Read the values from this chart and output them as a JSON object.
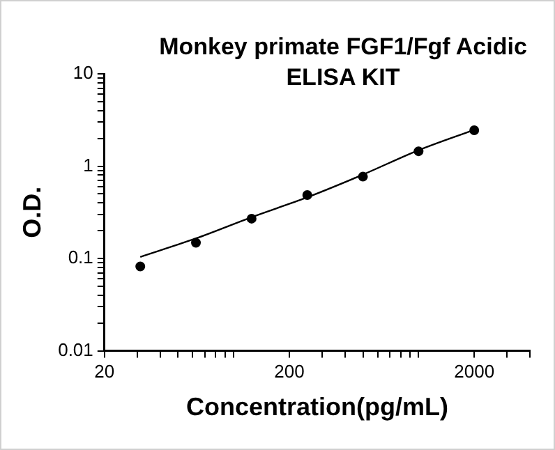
{
  "chart_data": {
    "type": "scatter",
    "title": "Monkey primate FGF1/Fgf Acidic ELISA KIT",
    "xlabel": "Concentration(pg/mL)",
    "ylabel": "O.D.",
    "log": "xy",
    "grid": false,
    "legend": false,
    "marker": "circle",
    "xlim": [
      20,
      4000
    ],
    "xticks": [
      20,
      {
        "value": 30,
        "label": null
      },
      {
        "value": 40,
        "label": null
      },
      {
        "value": 50,
        "label": null
      },
      {
        "value": 60,
        "label": null
      },
      {
        "value": 70,
        "label": null
      },
      {
        "value": 80,
        "label": null
      },
      {
        "value": 90,
        "label": null
      },
      {
        "value": 100,
        "label": null
      },
      200,
      {
        "value": 300,
        "label": null
      },
      {
        "value": 400,
        "label": null
      },
      {
        "value": 500,
        "label": null
      },
      {
        "value": 600,
        "label": null
      },
      {
        "value": 700,
        "label": null
      },
      {
        "value": 800,
        "label": null
      },
      {
        "value": 900,
        "label": null
      },
      {
        "value": 1000,
        "label": null
      },
      2000,
      {
        "value": 3000,
        "label": null
      },
      {
        "value": 4000,
        "label": null
      }
    ],
    "ylim": [
      0.01,
      10
    ],
    "yticks": [
      0.01,
      {
        "value": 0.02,
        "label": null
      },
      {
        "value": 0.03,
        "label": null
      },
      {
        "value": 0.04,
        "label": null
      },
      {
        "value": 0.05,
        "label": null
      },
      {
        "value": 0.06,
        "label": null
      },
      {
        "value": 0.07,
        "label": null
      },
      {
        "value": 0.08,
        "label": null
      },
      {
        "value": 0.09,
        "label": null
      },
      0.1,
      {
        "value": 0.2,
        "label": null
      },
      {
        "value": 0.3,
        "label": null
      },
      {
        "value": 0.4,
        "label": null
      },
      {
        "value": 0.5,
        "label": null
      },
      {
        "value": 0.6,
        "label": null
      },
      {
        "value": 0.7,
        "label": null
      },
      {
        "value": 0.8,
        "label": null
      },
      {
        "value": 0.9,
        "label": null
      },
      1,
      {
        "value": 2,
        "label": null
      },
      {
        "value": 3,
        "label": null
      },
      {
        "value": 4,
        "label": null
      },
      {
        "value": 5,
        "label": null
      },
      {
        "value": 6,
        "label": null
      },
      {
        "value": 7,
        "label": null
      },
      {
        "value": 8,
        "label": null
      },
      {
        "value": 9,
        "label": null
      },
      10
    ],
    "series": [
      {
        "color": "#000000",
        "x": [
          31.25,
          62.5,
          125,
          250,
          500,
          1000,
          2000
        ],
        "values": [
          0.082,
          0.148,
          0.27,
          0.486,
          0.77,
          1.45,
          2.45
        ]
      },
      {
        "type": "line",
        "color": "#000000",
        "marker": "none",
        "x": [
          31.25,
          62.5,
          125,
          250,
          500,
          1000,
          2000
        ],
        "values": [
          0.104,
          0.165,
          0.28,
          0.46,
          0.81,
          1.49,
          2.48
        ]
      }
    ]
  }
}
